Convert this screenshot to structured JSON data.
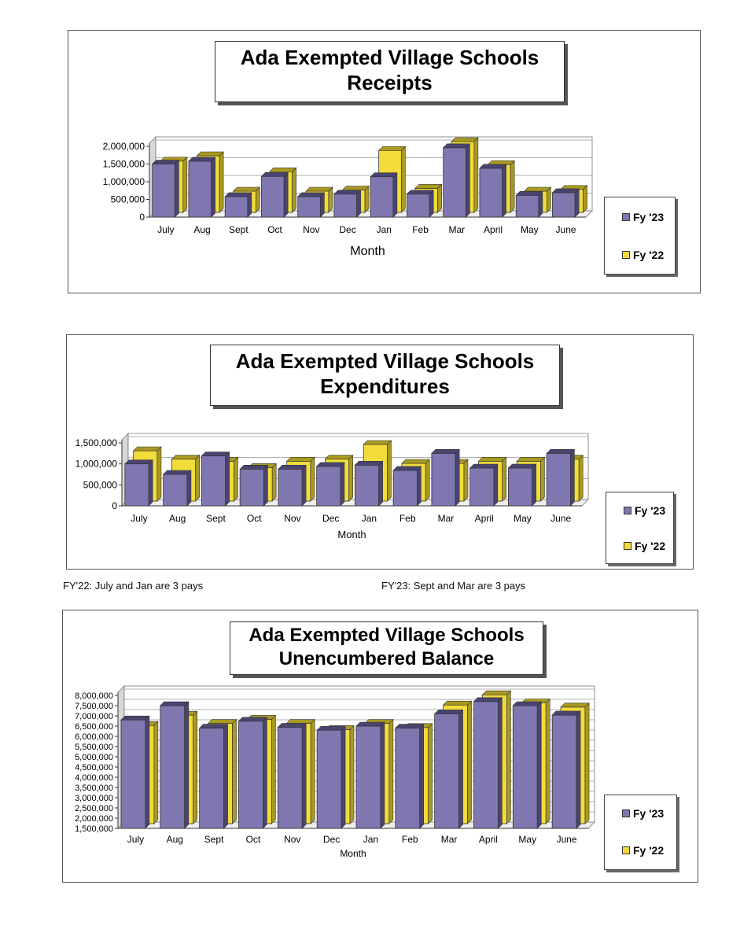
{
  "colors": {
    "fy23": "#8077b0",
    "fy23_dark": "#4a4470",
    "fy22": "#f2dc3c",
    "fy22_dark": "#a99a20",
    "wall": "#d8d8d8"
  },
  "legend": {
    "fy23": "Fy '23",
    "fy22": "Fy '22"
  },
  "notes": {
    "left": "FY'22:  July and Jan are 3 pays",
    "right": "FY'23:  Sept and Mar are 3 pays"
  },
  "chart_data": [
    {
      "type": "bar",
      "title_line1": "Ada Exempted Village Schools",
      "title_line2": "Receipts",
      "xlabel": "Month",
      "ylabel": "",
      "categories": [
        "July",
        "Aug",
        "Sept",
        "Oct",
        "Nov",
        "Dec",
        "Jan",
        "Feb",
        "Mar",
        "April",
        "May",
        "June"
      ],
      "ylim": [
        0,
        2000000
      ],
      "yticks": [
        "0",
        "500,000",
        "1,000,000",
        "1,500,000",
        "2,000,000"
      ],
      "ytick_values": [
        0,
        500000,
        1000000,
        1500000,
        2000000
      ],
      "grid": true,
      "legend_position": "right",
      "series": [
        {
          "name": "Fy '23",
          "values": [
            1500000,
            1580000,
            580000,
            1150000,
            580000,
            650000,
            1140000,
            650000,
            1960000,
            1380000,
            615000,
            690000
          ]
        },
        {
          "name": "Fy '22",
          "values": [
            1450000,
            1600000,
            600000,
            1150000,
            600000,
            630000,
            1750000,
            680000,
            2000000,
            1350000,
            600000,
            650000
          ]
        }
      ]
    },
    {
      "type": "bar",
      "title_line1": "Ada Exempted Village Schools",
      "title_line2": "Expenditures",
      "xlabel": "Month",
      "ylabel": "",
      "categories": [
        "July",
        "Aug",
        "Sept",
        "Oct",
        "Nov",
        "Dec",
        "Jan",
        "Feb",
        "Mar",
        "April",
        "May",
        "June"
      ],
      "ylim": [
        0,
        1500000
      ],
      "yticks": [
        "0",
        "500,000",
        "1,000,000",
        "1,500,000"
      ],
      "ytick_values": [
        0,
        500000,
        1000000,
        1500000
      ],
      "grid": true,
      "legend_position": "right",
      "series": [
        {
          "name": "Fy '23",
          "values": [
            1000000,
            750000,
            1190000,
            875000,
            875000,
            940000,
            970000,
            845000,
            1250000,
            900000,
            900000,
            1250000
          ]
        },
        {
          "name": "Fy '22",
          "values": [
            1200000,
            1000000,
            950000,
            800000,
            950000,
            1000000,
            1350000,
            900000,
            900000,
            950000,
            950000,
            1000000
          ]
        }
      ]
    },
    {
      "type": "bar",
      "title_line1": "Ada Exempted Village Schools",
      "title_line2": "Unencumbered Balance",
      "xlabel": "Month",
      "ylabel": "",
      "categories": [
        "July",
        "Aug",
        "Sept",
        "Oct",
        "Nov",
        "Dec",
        "Jan",
        "Feb",
        "Mar",
        "April",
        "May",
        "June"
      ],
      "ylim": [
        1500000,
        8000000
      ],
      "yticks": [
        "1,500,000",
        "2,000,000",
        "2,500,000",
        "3,000,000",
        "3,500,000",
        "4,000,000",
        "4,500,000",
        "5,000,000",
        "5,500,000",
        "6,000,000",
        "6,500,000",
        "7,000,000",
        "7,500,000",
        "8,000,000"
      ],
      "ytick_values": [
        1500000,
        2000000,
        2500000,
        3000000,
        3500000,
        4000000,
        4500000,
        5000000,
        5500000,
        6000000,
        6500000,
        7000000,
        7500000,
        8000000
      ],
      "grid": true,
      "legend_position": "right",
      "series": [
        {
          "name": "Fy '23",
          "values": [
            6800000,
            7500000,
            6400000,
            6740000,
            6440000,
            6300000,
            6500000,
            6400000,
            7100000,
            7700000,
            7500000,
            7040000
          ]
        },
        {
          "name": "Fy '22",
          "values": [
            6300000,
            6800000,
            6400000,
            6600000,
            6400000,
            6100000,
            6400000,
            6200000,
            7300000,
            7800000,
            7400000,
            7200000
          ]
        }
      ]
    }
  ]
}
